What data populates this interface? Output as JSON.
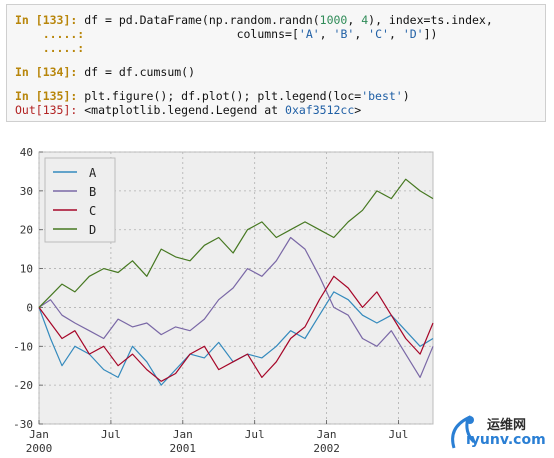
{
  "notebook": {
    "cells": [
      {
        "prompt": "In [133]:",
        "line1": {
          "a": " df = pd.DataFrame(np.random.randn(",
          "n1": "1000",
          "b": ", ",
          "n2": "4",
          "c": "), index=ts.index,"
        },
        "cont1": "    .....:",
        "line2": {
          "a": "                      columns=[",
          "s1": "'A'",
          "b": ", ",
          "s2": "'B'",
          "c": ", ",
          "s3": "'C'",
          "d": ", ",
          "s4": "'D'",
          "e": "])"
        },
        "cont2": "    .....:"
      },
      {
        "prompt": "In [134]:",
        "code": " df = df.cumsum()"
      },
      {
        "prompt": "In [135]:",
        "code_a": " plt.figure(); df.plot(); plt.legend(loc=",
        "code_str": "'best'",
        "code_b": ")",
        "out_prompt": "Out[135]:",
        "out_a": " <matplotlib.legend.Legend at ",
        "out_addr": "0xaf3512cc",
        "out_b": ">"
      }
    ]
  },
  "chart_data": {
    "type": "line",
    "x_ticks": [
      {
        "pos": 0,
        "line1": "Jan",
        "line2": "2000"
      },
      {
        "pos": 0.5,
        "line1": "Jul",
        "line2": ""
      },
      {
        "pos": 1,
        "line1": "Jan",
        "line2": "2001"
      },
      {
        "pos": 1.5,
        "line1": "Jul",
        "line2": ""
      },
      {
        "pos": 2,
        "line1": "Jan",
        "line2": "2002"
      },
      {
        "pos": 2.5,
        "line1": "Jul",
        "line2": ""
      }
    ],
    "xlim": [
      0,
      2.74
    ],
    "ylim": [
      -30,
      40
    ],
    "y_ticks": [
      -30,
      -20,
      -10,
      0,
      10,
      20,
      30,
      40
    ],
    "grid": true,
    "legend_position": "upper-left",
    "series": [
      {
        "name": "A",
        "color": "#348abd",
        "x": [
          0,
          0.08,
          0.16,
          0.25,
          0.35,
          0.45,
          0.55,
          0.65,
          0.75,
          0.85,
          0.95,
          1.05,
          1.15,
          1.25,
          1.35,
          1.45,
          1.55,
          1.65,
          1.75,
          1.85,
          1.95,
          2.05,
          2.15,
          2.25,
          2.35,
          2.45,
          2.55,
          2.65,
          2.74
        ],
        "y": [
          0,
          -8,
          -15,
          -10,
          -12,
          -16,
          -18,
          -10,
          -14,
          -20,
          -16,
          -12,
          -13,
          -9,
          -14,
          -12,
          -13,
          -10,
          -6,
          -8,
          -2,
          4,
          2,
          -2,
          -4,
          -2,
          -6,
          -10,
          -8
        ]
      },
      {
        "name": "B",
        "color": "#7a68a6",
        "x": [
          0,
          0.08,
          0.16,
          0.25,
          0.35,
          0.45,
          0.55,
          0.65,
          0.75,
          0.85,
          0.95,
          1.05,
          1.15,
          1.25,
          1.35,
          1.45,
          1.55,
          1.65,
          1.75,
          1.85,
          1.95,
          2.05,
          2.15,
          2.25,
          2.35,
          2.45,
          2.55,
          2.65,
          2.74
        ],
        "y": [
          0,
          2,
          -2,
          -4,
          -6,
          -8,
          -3,
          -5,
          -4,
          -7,
          -5,
          -6,
          -3,
          2,
          5,
          10,
          8,
          12,
          18,
          15,
          8,
          0,
          -2,
          -8,
          -10,
          -6,
          -12,
          -18,
          -10
        ]
      },
      {
        "name": "C",
        "color": "#a60628",
        "x": [
          0,
          0.08,
          0.16,
          0.25,
          0.35,
          0.45,
          0.55,
          0.65,
          0.75,
          0.85,
          0.95,
          1.05,
          1.15,
          1.25,
          1.35,
          1.45,
          1.55,
          1.65,
          1.75,
          1.85,
          1.95,
          2.05,
          2.15,
          2.25,
          2.35,
          2.45,
          2.55,
          2.65,
          2.74
        ],
        "y": [
          0,
          -4,
          -8,
          -6,
          -12,
          -10,
          -15,
          -12,
          -16,
          -19,
          -17,
          -12,
          -10,
          -16,
          -14,
          -12,
          -18,
          -14,
          -8,
          -5,
          2,
          8,
          5,
          0,
          4,
          -2,
          -8,
          -12,
          -4
        ]
      },
      {
        "name": "D",
        "color": "#467821",
        "x": [
          0,
          0.08,
          0.16,
          0.25,
          0.35,
          0.45,
          0.55,
          0.65,
          0.75,
          0.85,
          0.95,
          1.05,
          1.15,
          1.25,
          1.35,
          1.45,
          1.55,
          1.65,
          1.75,
          1.85,
          1.95,
          2.05,
          2.15,
          2.25,
          2.35,
          2.45,
          2.55,
          2.65,
          2.74
        ],
        "y": [
          0,
          3,
          6,
          4,
          8,
          10,
          9,
          12,
          8,
          15,
          13,
          12,
          16,
          18,
          14,
          20,
          22,
          18,
          20,
          22,
          20,
          18,
          22,
          25,
          30,
          28,
          33,
          30,
          28
        ]
      }
    ]
  },
  "watermark": {
    "line1": "运维网",
    "line2": "iyunv.com"
  }
}
